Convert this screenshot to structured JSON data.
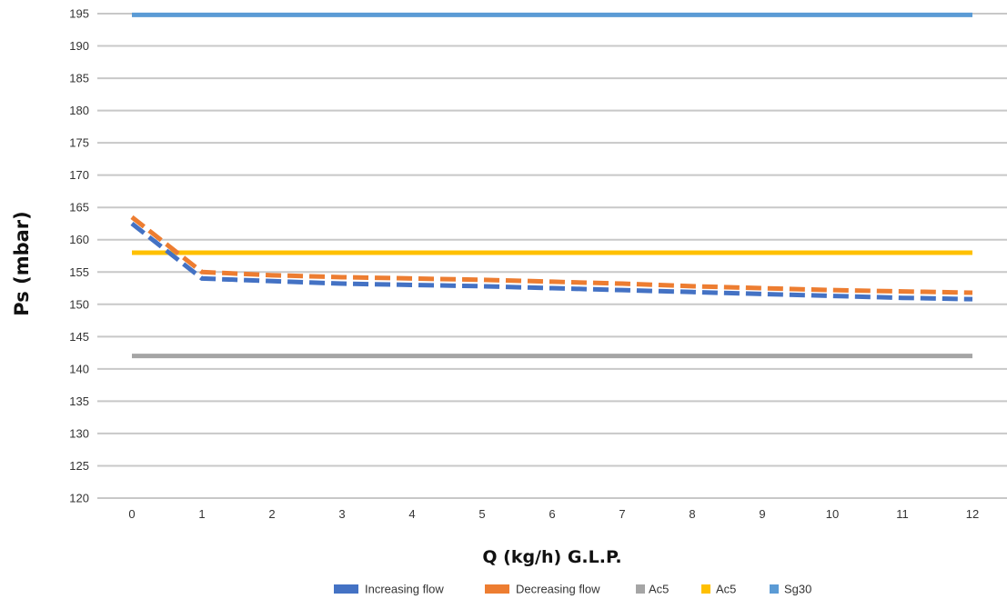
{
  "chart_data": {
    "type": "line",
    "xlabel": "Q (kg/h) G.L.P.",
    "ylabel": "Ps (mbar)",
    "x": [
      0,
      1,
      2,
      3,
      4,
      5,
      6,
      7,
      8,
      9,
      10,
      11,
      12
    ],
    "ylim": [
      120,
      195
    ],
    "yticks": [
      120,
      125,
      130,
      135,
      140,
      145,
      150,
      155,
      160,
      165,
      170,
      175,
      180,
      185,
      190,
      195
    ],
    "grid": "horizontal",
    "legend_position": "bottom",
    "series": [
      {
        "name": "Increasing flow",
        "color": "#4472c4",
        "dash": true,
        "values": [
          162.5,
          154.0,
          153.6,
          153.2,
          153.0,
          152.8,
          152.5,
          152.2,
          151.9,
          151.6,
          151.3,
          151.0,
          150.8
        ]
      },
      {
        "name": "Decreasing  flow",
        "color": "#ed7d31",
        "dash": true,
        "values": [
          163.5,
          155.0,
          154.5,
          154.2,
          154.0,
          153.8,
          153.5,
          153.2,
          152.8,
          152.5,
          152.2,
          152.0,
          151.8
        ]
      },
      {
        "name": "Ac5",
        "color": "#a5a5a5",
        "dash": false,
        "values": [
          142,
          142,
          142,
          142,
          142,
          142,
          142,
          142,
          142,
          142,
          142,
          142,
          142
        ]
      },
      {
        "name": "Ac5",
        "color": "#ffc000",
        "dash": false,
        "values": [
          158,
          158,
          158,
          158,
          158,
          158,
          158,
          158,
          158,
          158,
          158,
          158,
          158
        ]
      },
      {
        "name": "Sg30",
        "color": "#5b9bd5",
        "dash": false,
        "values": [
          194.8,
          194.8,
          194.8,
          194.8,
          194.8,
          194.8,
          194.8,
          194.8,
          194.8,
          194.8,
          194.8,
          194.8,
          194.8
        ]
      }
    ]
  }
}
